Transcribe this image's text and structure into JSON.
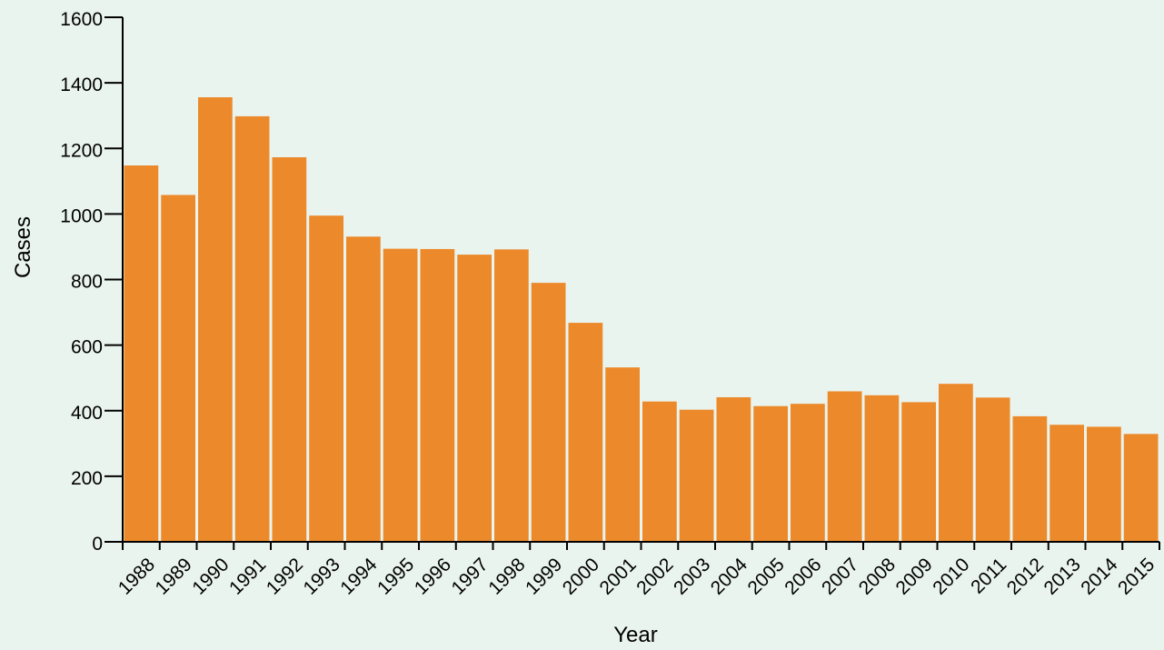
{
  "chart_data": {
    "type": "bar",
    "title": "",
    "xlabel": "Year",
    "ylabel": "Cases",
    "ylim": [
      0,
      1600
    ],
    "yticks": [
      0,
      200,
      400,
      600,
      800,
      1000,
      1200,
      1400,
      1600
    ],
    "grid": false,
    "categories": [
      "1988",
      "1989",
      "1990",
      "1991",
      "1992",
      "1993",
      "1994",
      "1995",
      "1996",
      "1997",
      "1998",
      "1999",
      "2000",
      "2001",
      "2002",
      "2003",
      "2004",
      "2005",
      "2006",
      "2007",
      "2008",
      "2009",
      "2010",
      "2011",
      "2012",
      "2013",
      "2014",
      "2015"
    ],
    "values": [
      1148,
      1058,
      1356,
      1298,
      1173,
      995,
      931,
      894,
      893,
      876,
      892,
      790,
      668,
      532,
      428,
      403,
      441,
      414,
      421,
      459,
      447,
      426,
      482,
      440,
      383,
      357,
      351,
      329
    ],
    "colors": {
      "bar": "#ec8a2b",
      "axis": "#000000",
      "background": "#eaf4ef"
    }
  }
}
